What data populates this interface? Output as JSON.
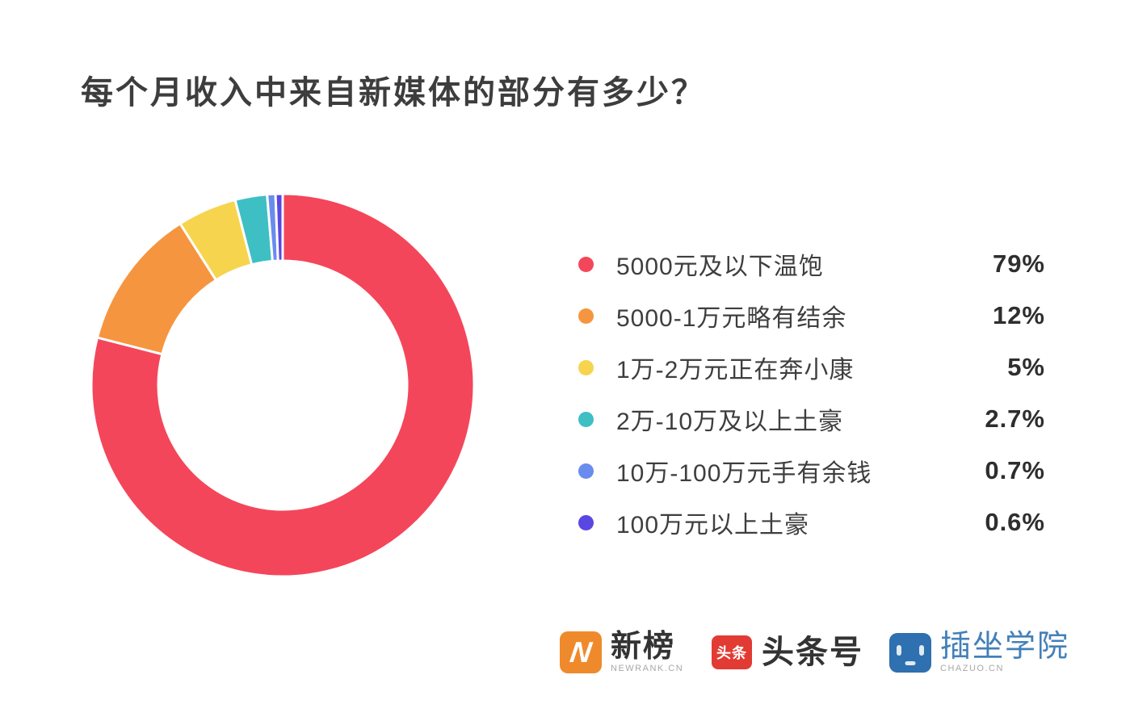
{
  "page": {
    "background_color": "#ffffff"
  },
  "chart_data": {
    "type": "pie",
    "subtype": "donut",
    "title": "每个月收入中来自新媒体的部分有多少？",
    "legend_position": "right",
    "start_angle_deg": 0,
    "direction": "clockwise",
    "inner_radius_ratio": 0.65,
    "slice_gap_color": "#ffffff",
    "slices": [
      {
        "label": "5000元及以下温饱",
        "value_pct": 79,
        "display": "79%",
        "color": "#f4465a"
      },
      {
        "label": "5000-1万元略有结余",
        "value_pct": 12,
        "display": "12%",
        "color": "#f6953f"
      },
      {
        "label": "1万-2万元正在奔小康",
        "value_pct": 5,
        "display": "5%",
        "color": "#f6d44d"
      },
      {
        "label": "2万-10万及以上土豪",
        "value_pct": 2.7,
        "display": "2.7%",
        "color": "#3ebfc4"
      },
      {
        "label": "10万-100万元手有余钱",
        "value_pct": 0.7,
        "display": "0.7%",
        "color": "#6a8cef"
      },
      {
        "label": "100万元以上土豪",
        "value_pct": 0.6,
        "display": "0.6%",
        "color": "#5a47e2"
      }
    ]
  },
  "footer": {
    "logos": [
      {
        "name": "newrank",
        "icon_text": "N",
        "title": "新榜",
        "subtitle": "NEWRANK.CN",
        "icon_color": "#ef8a2c",
        "title_color": "#333333"
      },
      {
        "name": "toutiao",
        "icon_text": "头条",
        "title": "头条号",
        "subtitle": "",
        "icon_color": "#e23b33",
        "title_color": "#333333"
      },
      {
        "name": "chazuo",
        "icon_text": "",
        "title": "插坐学院",
        "subtitle": "CHAZUO.CN",
        "icon_color": "#2e70b0",
        "title_color": "#4380b8"
      }
    ]
  }
}
